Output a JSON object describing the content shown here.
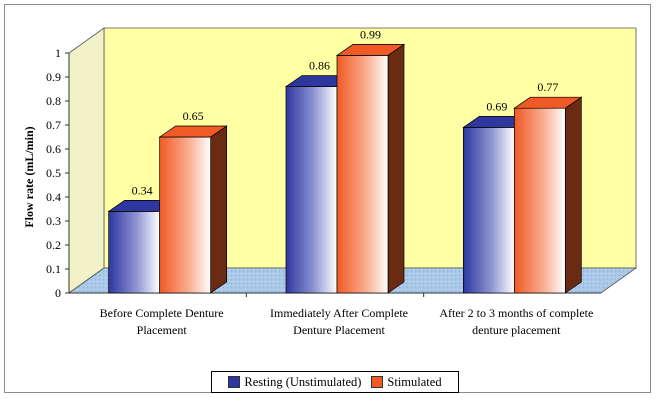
{
  "colors": {
    "wall": "#FFFFA3",
    "wall_top": "#F2F2C8",
    "floor": "#A9C7E6",
    "resting": "#2E37A0",
    "stimulated": "#F05A24"
  },
  "chart_data": {
    "type": "bar",
    "title": "",
    "xlabel": "",
    "ylabel": "Flow rate (mL/min)",
    "ylim": [
      0,
      1
    ],
    "yticks": [
      "0",
      "0.1",
      "0.2",
      "0.3",
      "0.4",
      "0.5",
      "0.6",
      "0.7",
      "0.8",
      "0.9",
      "1"
    ],
    "categories": [
      [
        "Before Complete Denture",
        "Placement"
      ],
      [
        "Immediately After Complete",
        "Denture Placement"
      ],
      [
        "After 2 to 3 months of complete",
        "denture placement"
      ]
    ],
    "series": [
      {
        "name": "Resting (Unstimulated)",
        "values": [
          0.34,
          0.86,
          0.69
        ],
        "labels": [
          "0.34",
          "0.86",
          "0.69"
        ]
      },
      {
        "name": "Stimulated",
        "values": [
          0.65,
          0.99,
          0.77
        ],
        "labels": [
          "0.65",
          "0.99",
          "0.77"
        ]
      }
    ],
    "style": "3d-clustered-bar",
    "grid": false,
    "legend_position": "bottom"
  }
}
